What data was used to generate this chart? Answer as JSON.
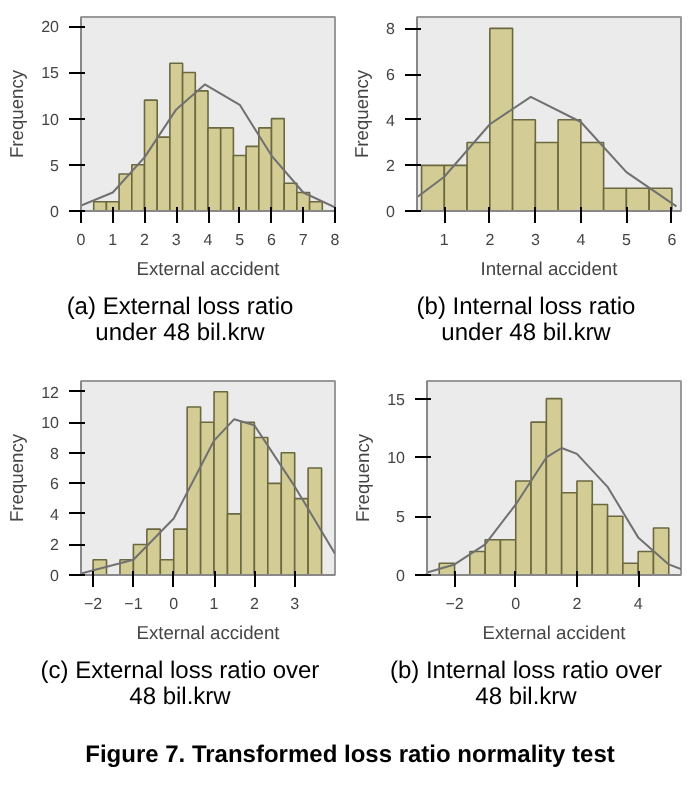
{
  "chart_data": [
    {
      "type": "histogram",
      "title": "(a) External loss ratio under 48 bil.krw",
      "xlabel": "External accident",
      "ylabel": "Frequency",
      "color": "#d3cd95",
      "bins": [
        0.4,
        0.8,
        1.2,
        1.6,
        2.0,
        2.4,
        2.8,
        3.2,
        3.6,
        4.0,
        4.4,
        4.8,
        5.2,
        5.6,
        6.0,
        6.4,
        6.8,
        7.2,
        7.6
      ],
      "values": [
        1,
        1,
        4,
        5,
        12,
        8,
        16,
        15,
        13,
        9,
        9,
        6,
        7,
        9,
        10,
        3,
        2,
        1
      ],
      "series": [
        {
          "type": "line",
          "color": "#707070",
          "x": [
            0,
            1,
            2,
            3,
            3.9,
            5,
            6,
            7,
            8
          ],
          "values": [
            0.6,
            2.0,
            5.8,
            11,
            13.7,
            11.5,
            6,
            2,
            0.4
          ]
        }
      ],
      "xlim": [
        0,
        8
      ],
      "xticks": [
        0,
        1,
        2,
        3,
        4,
        5,
        6,
        7,
        8
      ],
      "ylim": [
        0,
        21
      ],
      "yticks": [
        0,
        5,
        10,
        15,
        20
      ],
      "grid": false
    },
    {
      "type": "histogram",
      "title": "(b) Internal loss ratio under 48 bil.krw",
      "xlabel": "Internal accident",
      "ylabel": "Frequency",
      "color": "#d3cd95",
      "bins": [
        0.5,
        1.0,
        1.5,
        2.0,
        2.5,
        3.0,
        3.5,
        4.0,
        4.5,
        5.0,
        5.5,
        6.0
      ],
      "values": [
        2,
        2,
        3,
        8,
        4,
        3,
        4,
        3,
        1,
        1,
        1
      ],
      "series": [
        {
          "type": "line",
          "color": "#707070",
          "x": [
            0.4,
            1,
            2,
            2.9,
            4,
            5,
            6.1
          ],
          "values": [
            0.6,
            1.5,
            3.8,
            5.0,
            3.9,
            1.7,
            0.2
          ]
        }
      ],
      "xlim": [
        0.4,
        6.2
      ],
      "xticks": [
        1,
        2,
        3,
        4,
        5,
        6
      ],
      "ylim": [
        0,
        8.5
      ],
      "yticks": [
        0,
        2,
        4,
        6,
        8
      ],
      "grid": false
    },
    {
      "type": "histogram",
      "title": "(c) External loss ratio over 48 bil.krw",
      "xlabel": "External accident",
      "ylabel": "Frequency",
      "color": "#d3cd95",
      "bins": [
        -2,
        -1.667,
        -1.333,
        -1,
        -0.667,
        -0.333,
        0,
        0.333,
        0.667,
        1,
        1.333,
        1.667,
        2,
        2.333,
        2.667,
        3,
        3.333,
        3.667
      ],
      "values": [
        1,
        0,
        1,
        2,
        3,
        1,
        3,
        11,
        10,
        12,
        4,
        10,
        9,
        6,
        8,
        5,
        7
      ],
      "series": [
        {
          "type": "line",
          "color": "#707070",
          "x": [
            -2.3,
            -1,
            0,
            1,
            1.5,
            2,
            3,
            4
          ],
          "values": [
            0.1,
            1,
            3.7,
            8.8,
            10.2,
            9.8,
            5.8,
            1.4
          ]
        }
      ],
      "xlim": [
        -2.3,
        4.0
      ],
      "xticks": [
        -2,
        -1,
        0,
        1,
        2,
        3
      ],
      "ylim": [
        0,
        12.7
      ],
      "yticks": [
        0,
        2,
        4,
        6,
        8,
        10,
        12
      ],
      "grid": false
    },
    {
      "type": "histogram",
      "title": "(b) Internal loss ratio over 48 bil.krw",
      "xlabel": "External accident",
      "ylabel": "Frequency",
      "color": "#d3cd95",
      "bins": [
        -2.5,
        -2,
        -1.5,
        -1,
        -0.5,
        0,
        0.5,
        1,
        1.5,
        2,
        2.5,
        3,
        3.5,
        4,
        4.5,
        5
      ],
      "values": [
        1,
        0,
        2,
        3,
        3,
        8,
        13,
        15,
        7,
        8,
        6,
        5,
        1,
        2,
        4
      ],
      "series": [
        {
          "type": "line",
          "color": "#707070",
          "x": [
            -2.9,
            -2,
            -1,
            0,
            1,
            1.5,
            2,
            3,
            4,
            5,
            5.4
          ],
          "values": [
            0.2,
            0.9,
            2.6,
            6,
            10,
            10.8,
            10.3,
            7.5,
            3.2,
            0.9,
            0.5
          ]
        }
      ],
      "xlim": [
        -2.9,
        5.4
      ],
      "xticks": [
        -2,
        0,
        2,
        4
      ],
      "ylim": [
        0,
        16.5
      ],
      "yticks": [
        0,
        5,
        10,
        15
      ],
      "grid": false,
      "annotations": [
        "Figure 7. Transformed loss ratio normality test"
      ]
    }
  ]
}
